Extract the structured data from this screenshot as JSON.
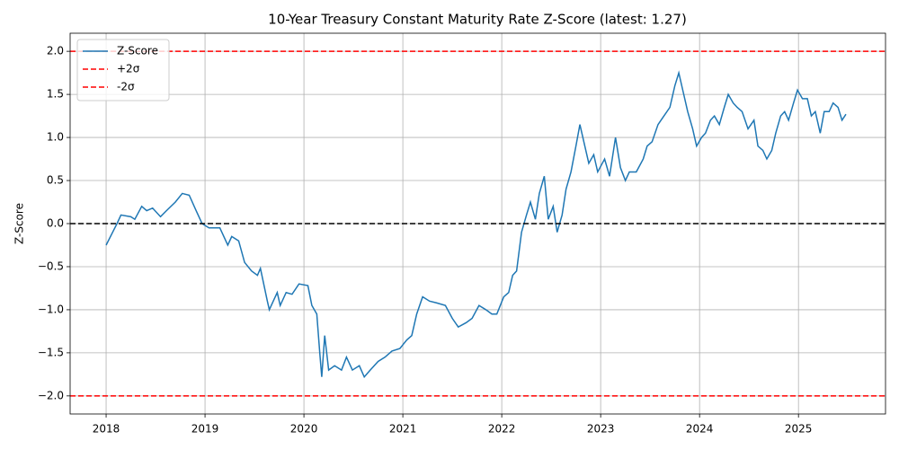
{
  "chart_data": {
    "type": "line",
    "title": "10-Year Treasury Constant Maturity Rate Z-Score (latest: 1.27)",
    "y_label": "Z-Score",
    "x": [
      2018.0,
      2018.11,
      2018.15,
      2018.25,
      2018.29,
      2018.36,
      2018.41,
      2018.47,
      2018.55,
      2018.61,
      2018.7,
      2018.77,
      2018.84,
      2018.91,
      2018.97,
      2019.04,
      2019.15,
      2019.23,
      2019.27,
      2019.34,
      2019.4,
      2019.47,
      2019.53,
      2019.56,
      2019.63,
      2019.65,
      2019.73,
      2019.76,
      2019.82,
      2019.88,
      2019.95,
      2020.04,
      2020.08,
      2020.13,
      2020.16,
      2020.18,
      2020.21,
      2020.25,
      2020.31,
      2020.38,
      2020.43,
      2020.49,
      2020.56,
      2020.61,
      2020.67,
      2020.75,
      2020.82,
      2020.89,
      2020.97,
      2021.04,
      2021.09,
      2021.14,
      2021.2,
      2021.27,
      2021.34,
      2021.43,
      2021.5,
      2021.56,
      2021.64,
      2021.7,
      2021.77,
      2021.84,
      2021.9,
      2021.95,
      2022.02,
      2022.07,
      2022.11,
      2022.15,
      2022.2,
      2022.25,
      2022.29,
      2022.34,
      2022.38,
      2022.43,
      2022.47,
      2022.52,
      2022.56,
      2022.61,
      2022.65,
      2022.7,
      2022.75,
      2022.79,
      2022.84,
      2022.88,
      2022.93,
      2022.97,
      2023.04,
      2023.09,
      2023.15,
      2023.2,
      2023.25,
      2023.29,
      2023.36,
      2023.43,
      2023.47,
      2023.52,
      2023.58,
      2023.64,
      2023.7,
      2023.75,
      2023.79,
      2023.84,
      2023.88,
      2023.93,
      2023.97,
      2024.02,
      2024.06,
      2024.11,
      2024.15,
      2024.2,
      2024.25,
      2024.29,
      2024.34,
      2024.38,
      2024.43,
      2024.49,
      2024.55,
      2024.59,
      2024.64,
      2024.68,
      2024.73,
      2024.77,
      2024.82,
      2024.86,
      2024.9,
      2024.95,
      2024.99,
      2025.04,
      2025.09,
      2025.13,
      2025.17,
      2025.22,
      2025.26,
      2025.31,
      2025.35,
      2025.4,
      2025.44,
      2025.48
    ],
    "series": [
      {
        "name": "Z-Score",
        "color": "#1f77b4",
        "values": [
          -0.25,
          0.0,
          0.1,
          0.08,
          0.05,
          0.2,
          0.15,
          0.18,
          0.08,
          0.15,
          0.25,
          0.35,
          0.33,
          0.15,
          0.0,
          -0.05,
          -0.05,
          -0.25,
          -0.15,
          -0.2,
          -0.45,
          -0.55,
          -0.6,
          -0.52,
          -0.9,
          -1.0,
          -0.8,
          -0.95,
          -0.8,
          -0.82,
          -0.7,
          -0.72,
          -0.95,
          -1.05,
          -1.5,
          -1.78,
          -1.3,
          -1.7,
          -1.65,
          -1.7,
          -1.55,
          -1.7,
          -1.65,
          -1.78,
          -1.7,
          -1.6,
          -1.55,
          -1.48,
          -1.45,
          -1.35,
          -1.3,
          -1.05,
          -0.85,
          -0.9,
          -0.92,
          -0.95,
          -1.1,
          -1.2,
          -1.15,
          -1.1,
          -0.95,
          -1.0,
          -1.05,
          -1.05,
          -0.85,
          -0.8,
          -0.6,
          -0.55,
          -0.1,
          0.1,
          0.25,
          0.05,
          0.35,
          0.55,
          0.05,
          0.2,
          -0.1,
          0.1,
          0.4,
          0.6,
          0.9,
          1.15,
          0.9,
          0.7,
          0.8,
          0.6,
          0.75,
          0.55,
          1.0,
          0.65,
          0.5,
          0.6,
          0.6,
          0.75,
          0.9,
          0.95,
          1.15,
          1.25,
          1.35,
          1.6,
          1.75,
          1.5,
          1.3,
          1.1,
          0.9,
          1.0,
          1.05,
          1.2,
          1.25,
          1.15,
          1.35,
          1.5,
          1.4,
          1.35,
          1.3,
          1.1,
          1.2,
          0.9,
          0.85,
          0.75,
          0.85,
          1.05,
          1.25,
          1.3,
          1.2,
          1.4,
          1.55,
          1.45,
          1.45,
          1.25,
          1.3,
          1.05,
          1.3,
          1.3,
          1.4,
          1.35,
          1.2,
          1.27
        ]
      }
    ],
    "reference_lines": [
      {
        "name": "+2σ",
        "value": 2.0,
        "color": "#ff0000"
      },
      {
        "name": "-2σ",
        "value": -2.0,
        "color": "#ff0000"
      },
      {
        "value": 0.0,
        "color": "#000000"
      }
    ],
    "xlim": [
      2017.636,
      2025.88
    ],
    "xticks": [
      2018,
      2019,
      2020,
      2021,
      2022,
      2023,
      2024,
      2025
    ],
    "ylim": [
      -2.21,
      2.21
    ],
    "yticks": [
      {
        "value": -2.0,
        "label": "−2.0"
      },
      {
        "value": -1.5,
        "label": "−1.5"
      },
      {
        "value": -1.0,
        "label": "−1.0"
      },
      {
        "value": -0.5,
        "label": "−0.5"
      },
      {
        "value": 0.0,
        "label": "0.0"
      },
      {
        "value": 0.5,
        "label": "0.5"
      },
      {
        "value": 1.0,
        "label": "1.0"
      },
      {
        "value": 1.5,
        "label": "1.5"
      },
      {
        "value": 2.0,
        "label": "2.0"
      }
    ],
    "grid": true,
    "legend": "upper left"
  }
}
